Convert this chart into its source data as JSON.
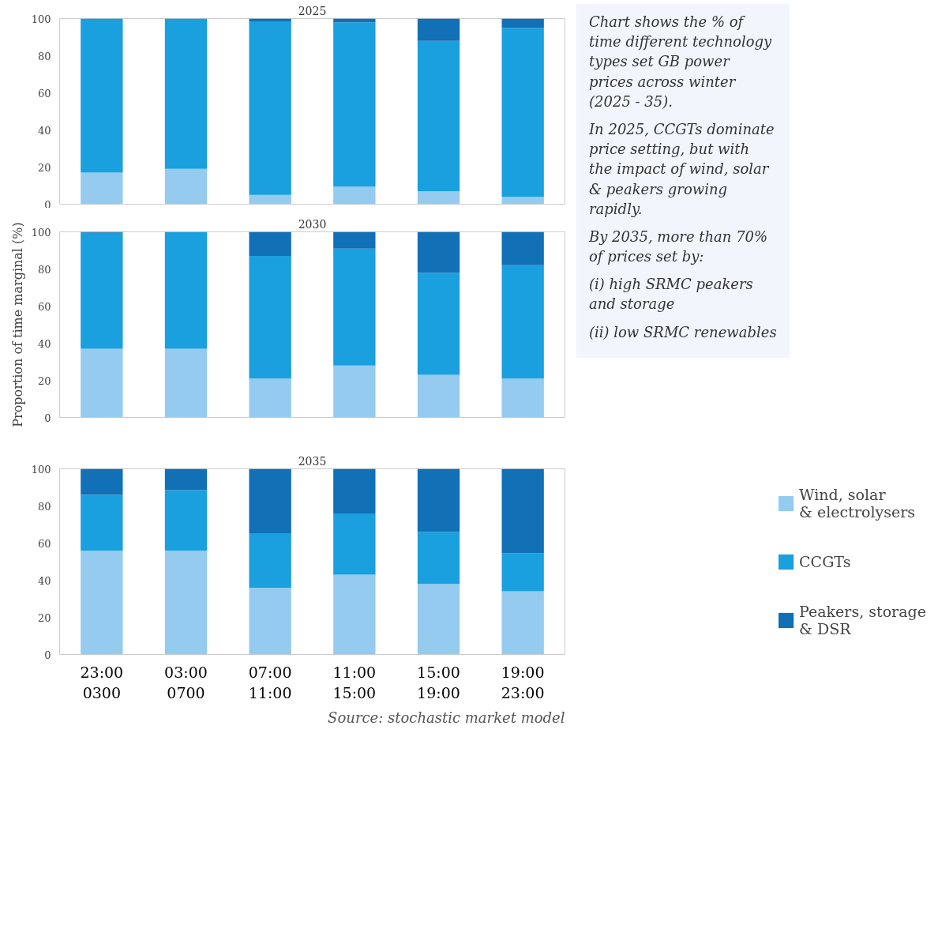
{
  "chart_data": [
    {
      "type": "bar",
      "title": "2025",
      "stacked": true,
      "categories": [
        null,
        null,
        null,
        null,
        null,
        null
      ],
      "ylim": [
        0,
        100
      ],
      "yticks": [
        0,
        20,
        40,
        60,
        80,
        100
      ],
      "tick_labels": "y",
      "grid": false,
      "legend": false,
      "series": [
        {
          "color": "#95cbee",
          "values": [
            17,
            19,
            5,
            9.5,
            7,
            4
          ]
        },
        {
          "color": "#1a9fdf",
          "values": [
            83,
            81,
            93.5,
            88.5,
            81,
            91
          ]
        },
        {
          "color": "#1170b6",
          "values": [
            0,
            0,
            1.5,
            2,
            12,
            5
          ]
        }
      ]
    },
    {
      "type": "bar",
      "title": "2030",
      "ylabel": "Proportion of time marginal (%)",
      "stacked": true,
      "categories": [
        null,
        null,
        null,
        null,
        null,
        null
      ],
      "ylim": [
        0,
        100
      ],
      "yticks": [
        0,
        20,
        40,
        60,
        80,
        100
      ],
      "tick_labels": "y",
      "grid": false,
      "legend": false,
      "series": [
        {
          "color": "#95cbee",
          "values": [
            37,
            37,
            21,
            28,
            23,
            21
          ]
        },
        {
          "color": "#1a9fdf",
          "values": [
            62.5,
            63,
            66,
            63,
            55,
            61
          ]
        },
        {
          "color": "#1170b6",
          "values": [
            0.5,
            0,
            13,
            9,
            22,
            18
          ]
        }
      ]
    },
    {
      "type": "bar",
      "title": "2035",
      "stacked": true,
      "categories": [
        "23:00\n0300",
        "03:00\n0700",
        "07:00\n11:00",
        "11:00\n15:00",
        "15:00\n19:00",
        "19:00\n23:00"
      ],
      "ylim": [
        0,
        100
      ],
      "yticks": [
        0,
        20,
        40,
        60,
        80,
        100
      ],
      "grid": false,
      "legend": "right",
      "annotations": [
        "Source: stochastic market model"
      ],
      "series": [
        {
          "name": "Wind, solar & electrolysers",
          "color": "#95cbee",
          "values": [
            56,
            56,
            36,
            43,
            38,
            34
          ]
        },
        {
          "name": "CCGTs",
          "color": "#1a9fdf",
          "values": [
            30,
            32.5,
            29,
            33,
            28,
            20.5
          ]
        },
        {
          "name": "Peakers, storage & DSR",
          "color": "#1170b6",
          "values": [
            14,
            11.5,
            35,
            24,
            34,
            45.5
          ]
        }
      ]
    },
    {
      "type": "other",
      "annotations": [
        "Chart shows the % of time different technology types set GB power prices across winter (2025 - 35).",
        "In 2025, CCGTs dominate price setting, but with the impact of wind, solar & peakers growing rapidly.",
        "By 2035, more than 70% of prices set by:",
        "(i) high SRMC peakers and storage",
        "(ii) low SRMC renewables"
      ]
    }
  ]
}
